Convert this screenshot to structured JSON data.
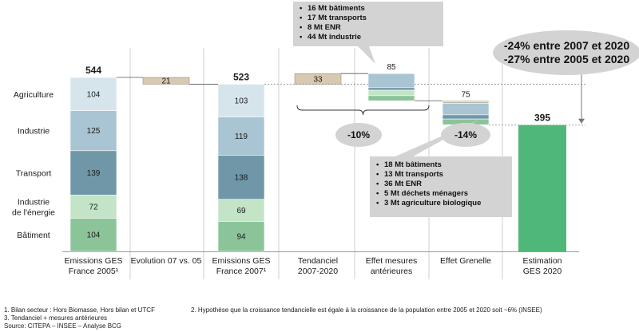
{
  "chart_data": {
    "type": "waterfall-stacked-bar",
    "unit": "Mt",
    "categories": [
      "Emissions GES France 2005¹",
      "Evolution 07 vs. 05",
      "Emissions GES France 2007¹",
      "Tendanciel 2007-2020",
      "Effet mesures antérieures",
      "Effet Grenelle",
      "Estimation GES 2020"
    ],
    "category_lines": [
      [
        "Emissions GES",
        "France 2005¹"
      ],
      [
        "Evolution 07 vs. 05"
      ],
      [
        "Emissions GES",
        "France 2007¹"
      ],
      [
        "Tendanciel",
        "2007-2020"
      ],
      [
        "Effet mesures",
        "antérieures"
      ],
      [
        "Effet Grenelle"
      ],
      [
        "Estimation",
        "GES 2020"
      ]
    ],
    "sectors": [
      "Agriculture",
      "Industrie",
      "Transport",
      "Industrie de l'énergie",
      "Bâtiment"
    ],
    "sector_label_lines": [
      [
        "Agriculture"
      ],
      [
        "Industrie"
      ],
      [
        "Transport"
      ],
      [
        "Industrie",
        "de l'énergie"
      ],
      [
        "Bâtiment"
      ]
    ],
    "sector_colors": [
      "#d6e5ec",
      "#a9c4d2",
      "#6f97a8",
      "#c3e4c7",
      "#8cc49a"
    ],
    "stacked_bars": [
      {
        "category_index": 0,
        "total": 544,
        "total_label": "544",
        "values": [
          104,
          125,
          139,
          72,
          104
        ]
      },
      {
        "category_index": 2,
        "total": 523,
        "total_label": "523",
        "values": [
          103,
          119,
          138,
          69,
          94
        ]
      }
    ],
    "deltas": [
      {
        "category_index": 1,
        "label": "21",
        "from": 544,
        "to": 523,
        "color": "#d8c9b0"
      },
      {
        "category_index": 3,
        "label": "33",
        "from": 523,
        "to": 556,
        "color": "#d8c9b0"
      },
      {
        "category_index": 4,
        "label": "85",
        "from": 556,
        "to": 471
      },
      {
        "category_index": 5,
        "label": "75",
        "from": 471,
        "to": 395
      }
    ],
    "final_bar": {
      "category_index": 6,
      "total": 395,
      "total_label": "395",
      "color": "#4fb878"
    },
    "ylim": [
      0,
      600
    ]
  },
  "callouts": {
    "top": [
      "16 Mt bâtiments",
      "17 Mt transports",
      "8 Mt ENR",
      "44 Mt industrie"
    ],
    "bottom": [
      "18 Mt bâtiments",
      "13 Mt transports",
      "36 Mt ENR",
      "5 Mt déchets ménagers",
      "3 Mt agriculture biologique"
    ]
  },
  "ellipses": {
    "minus10": "-10%",
    "minus14": "-14%",
    "summary_line1": "-24% entre 2007 et 2020",
    "summary_line2": "-27% entre 2005 et 2020"
  },
  "footnotes": {
    "note1": "1. Bilan secteur : Hors Biomasse, Hors bilan et UTCF",
    "note2": "2. Hypothèse que la croissance tendancielle est égale à la croissance de la population entre 2005 et 2020 soit ~6% (INSEE)",
    "note3": "3. Tendanciel + mesures antérieures",
    "source": "Source: CITEPA – INSEE – Analyse BCG"
  }
}
